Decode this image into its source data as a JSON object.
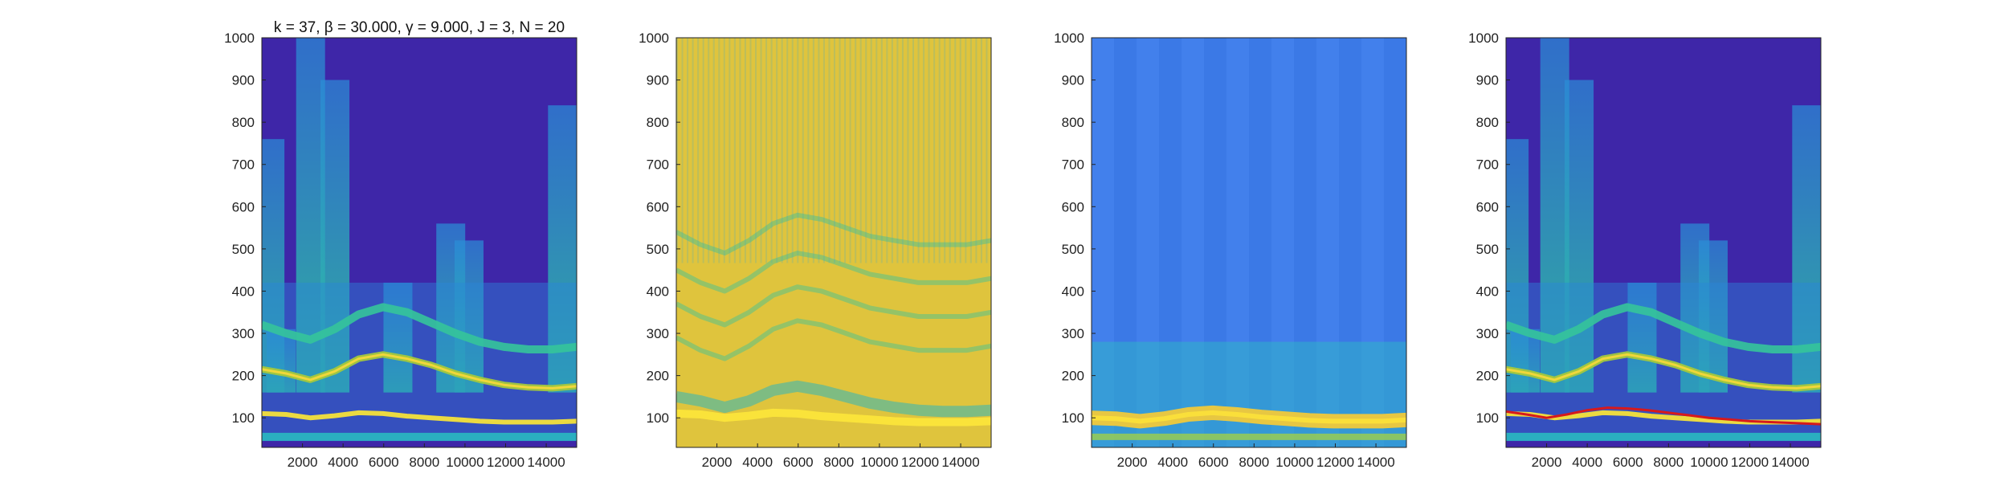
{
  "figure": {
    "title": "k = 37, β = 30.000, γ = 9.000, J = 3, N = 20"
  },
  "chart_data": [
    {
      "type": "heatmap",
      "title": "k = 37, β = 30.000, γ = 9.000, J = 3, N = 20",
      "xlabel": "",
      "ylabel": "",
      "xlim": [
        0,
        15500
      ],
      "ylim": [
        30,
        1000
      ],
      "xticks": [
        2000,
        4000,
        6000,
        8000,
        10000,
        12000,
        14000
      ],
      "yticks": [
        100,
        200,
        300,
        400,
        500,
        600,
        700,
        800,
        900,
        1000
      ],
      "colormap": "parula",
      "content": "sparse time-frequency ridges on dark background",
      "ridges": [
        {
          "y": [
            110,
            108,
            100,
            105,
            112,
            110,
            104,
            100,
            96,
            92,
            90,
            90,
            90,
            92
          ]
        },
        {
          "y": [
            215,
            205,
            190,
            210,
            240,
            250,
            240,
            225,
            205,
            190,
            178,
            172,
            170,
            175
          ]
        },
        {
          "y": [
            320,
            300,
            285,
            310,
            345,
            362,
            350,
            325,
            300,
            280,
            268,
            262,
            262,
            268
          ]
        }
      ]
    },
    {
      "type": "heatmap",
      "xlabel": "",
      "ylabel": "",
      "xlim": [
        0,
        15500
      ],
      "ylim": [
        30,
        1000
      ],
      "xticks": [
        2000,
        4000,
        6000,
        8000,
        10000,
        12000,
        14000
      ],
      "yticks": [
        100,
        200,
        300,
        400,
        500,
        600,
        700,
        800,
        900,
        1000
      ],
      "colormap": "parula",
      "content": "dense bright yellow-green field with banded harmonics"
    },
    {
      "type": "heatmap",
      "xlabel": "",
      "ylabel": "",
      "xlim": [
        0,
        15500
      ],
      "ylim": [
        30,
        1000
      ],
      "xticks": [
        2000,
        4000,
        6000,
        8000,
        10000,
        12000,
        14000
      ],
      "yticks": [
        100,
        200,
        300,
        400,
        500,
        600,
        700,
        800,
        900,
        1000
      ],
      "colormap": "parula",
      "content": "blue field with single strong yellow ridge near 100"
    },
    {
      "type": "heatmap",
      "xlabel": "",
      "ylabel": "",
      "xlim": [
        0,
        15500
      ],
      "ylim": [
        30,
        1000
      ],
      "xticks": [
        2000,
        4000,
        6000,
        8000,
        10000,
        12000,
        14000
      ],
      "yticks": [
        100,
        200,
        300,
        400,
        500,
        600,
        700,
        800,
        900,
        1000
      ],
      "colormap": "parula",
      "content": "same as panel 1 with extracted ridge overlay",
      "overlay": {
        "color": "#d7191c",
        "x": [
          0,
          1000,
          2000,
          3000,
          4000,
          5000,
          6000,
          7000,
          8000,
          9000,
          10000,
          11000,
          12000,
          13000,
          14000,
          15500
        ],
        "y": [
          115,
          108,
          100,
          108,
          118,
          124,
          122,
          118,
          112,
          106,
          100,
          96,
          92,
          90,
          88,
          85
        ]
      }
    }
  ]
}
